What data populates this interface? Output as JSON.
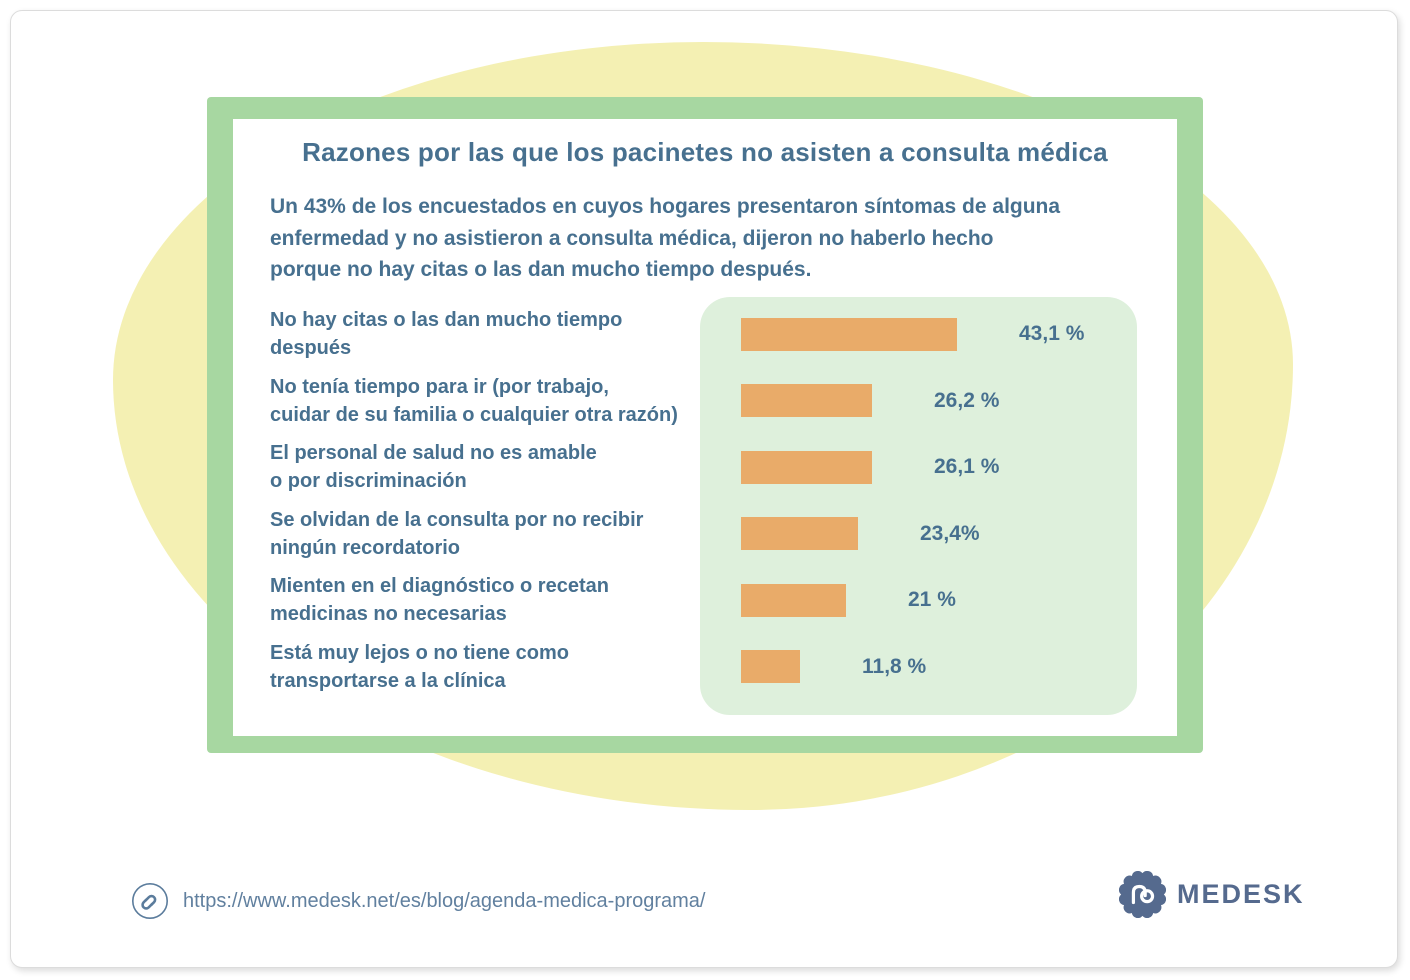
{
  "card": {
    "title": "Razones por las que los pacinetes no asisten a consulta médica",
    "intro": "Un 43% de los encuestados en cuyos hogares presentaron síntomas de alguna enfermedad y no asistieron a consulta médica, dijeron no haberlo hecho porque no hay citas o las dan mucho tiempo después.",
    "intro_lines": [
      "Un 43% de los encuestados en cuyos hogares presentaron síntomas de alguna",
      "enfermedad y no asistieron a consulta médica, dijeron no haberlo hecho",
      "porque no hay citas o las dan mucho tiempo después."
    ]
  },
  "chart_data": {
    "type": "bar",
    "orientation": "horizontal",
    "title": "Razones por las que los pacinetes no asisten a consulta médica",
    "categories": [
      "No hay citas o las dan mucho tiempo después",
      "No tenía tiempo para ir (por trabajo, cuidar de su familia o cualquier otra razón)",
      "El personal de salud no es amable o por discriminación",
      "Se olvidan de la consulta por no recibir ningún recordatorio",
      "Mienten en el diagnóstico o recetan medicinas no necesarias",
      "Está muy lejos o no tiene como transportarse a la clínica"
    ],
    "categories_lines": [
      [
        "No hay citas o las dan mucho tiempo",
        "después"
      ],
      [
        "No tenía tiempo para ir (por trabajo,",
        "cuidar de su familia o cualquier otra razón)"
      ],
      [
        "El personal de salud no es amable",
        "o por discriminación"
      ],
      [
        "Se olvidan de la consulta por no recibir",
        "ningún recordatorio"
      ],
      [
        "Mienten en el diagnóstico o recetan",
        "medicinas no necesarias"
      ],
      [
        "Está muy lejos o no tiene como",
        "transportarse a la clínica"
      ]
    ],
    "values": [
      43.1,
      26.2,
      26.1,
      23.4,
      21,
      11.8
    ],
    "value_labels": [
      "43,1 %",
      "26,2 %",
      "26,1 %",
      "23,4%",
      "21 %",
      "11,8 %"
    ],
    "xlim": [
      0,
      43.1
    ],
    "legend": false,
    "gridlines": false
  },
  "footer": {
    "url": "https://www.medesk.net/es/blog/agenda-medica-programa/",
    "brand": "MEDESK"
  },
  "icons": {
    "link": "chain-link-icon",
    "brand_badge": "medesk-badge-icon"
  },
  "colors": {
    "bar": "#e9ab69",
    "chart_panel": "#def0dc",
    "card_border": "#a7d7a1",
    "background_blob": "#f4f0b3",
    "text": "#47708f",
    "logo": "#556a8e",
    "url_text": "#61809f"
  }
}
